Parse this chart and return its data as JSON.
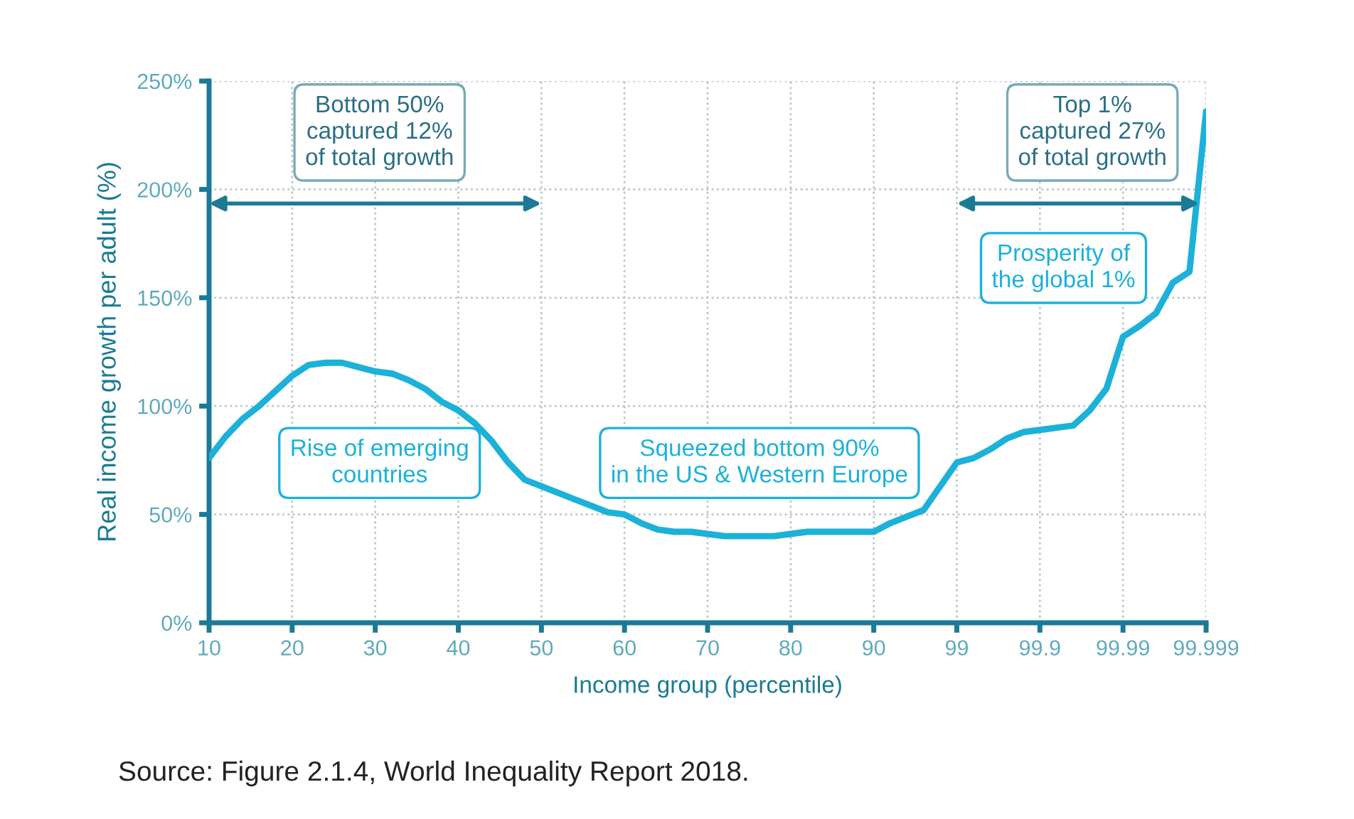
{
  "chart_data": {
    "type": "line",
    "xlabel": "Income group (percentile)",
    "ylabel": "Real income growth per adult (%)",
    "categories": [
      "10",
      null,
      null,
      null,
      null,
      "20",
      null,
      null,
      null,
      null,
      "30",
      null,
      null,
      null,
      null,
      "40",
      null,
      null,
      null,
      null,
      "50",
      null,
      null,
      null,
      null,
      "60",
      null,
      null,
      null,
      null,
      "70",
      null,
      null,
      null,
      null,
      "80",
      null,
      null,
      null,
      null,
      "90",
      null,
      null,
      null,
      null,
      "99",
      null,
      null,
      null,
      null,
      "99.9",
      null,
      null,
      null,
      null,
      "99.99",
      null,
      null,
      null,
      null,
      "99.999"
    ],
    "series": [
      {
        "color": "#1cb1d9",
        "values": [
          76,
          86,
          94,
          100,
          107,
          114,
          119,
          120,
          120,
          118,
          116,
          115,
          112,
          108,
          102,
          98,
          92,
          84,
          74,
          66,
          63,
          60,
          57,
          54,
          51,
          50,
          46,
          43,
          42,
          42,
          41,
          40,
          40,
          40,
          40,
          41,
          42,
          42,
          42,
          42,
          42,
          46,
          49,
          52,
          63,
          74,
          76,
          80,
          85,
          88,
          89,
          90,
          91,
          98,
          108,
          132,
          137,
          143,
          157,
          162,
          236
        ]
      }
    ],
    "ylim": [
      0,
      250
    ],
    "yticks": [
      {
        "value": 0,
        "label": "0%"
      },
      {
        "value": 50,
        "label": "50%"
      },
      {
        "value": 100,
        "label": "100%"
      },
      {
        "value": 150,
        "label": "150%"
      },
      {
        "value": 200,
        "label": "200%"
      },
      {
        "value": 250,
        "label": "250%"
      }
    ],
    "grid": true,
    "line_style": "solid",
    "marker": "none",
    "annotations": [
      "Bottom 50%\ncaptured 12%\nof total growth",
      "Top 1%\ncaptured 27%\nof total growth",
      "Rise of emerging\ncountries",
      "Squeezed bottom 90%\nin the US & Western Europe",
      "Prosperity of\nthe global 1%",
      "Source: Figure 2.1.4, World Inequality Report 2018."
    ]
  }
}
